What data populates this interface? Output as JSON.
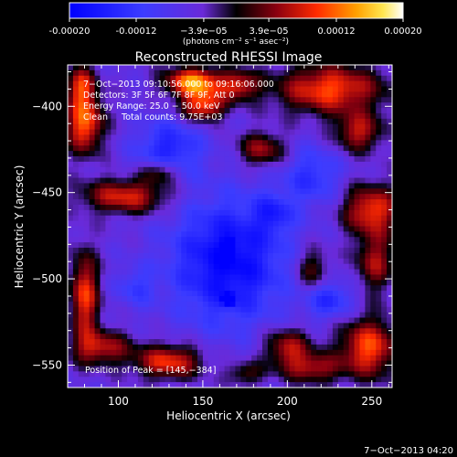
{
  "colorbar": {
    "tick_labels": [
      "-0.00020",
      "-0.00012",
      "−3.9e−05",
      "3.9e−05",
      "0.00012",
      "0.00020"
    ],
    "tick_values": [
      -0.0002,
      -0.00012,
      -3.9e-05,
      3.9e-05,
      0.00012,
      0.0002
    ],
    "range": [
      -0.0002,
      0.0002
    ],
    "unit_label": "(photons cm⁻² s⁻¹ asec⁻²)"
  },
  "chart_data": {
    "type": "heatmap",
    "title": "Reconstructed RHESSI Image",
    "xlabel": "Heliocentric X (arcsec)",
    "ylabel": "Heliocentric Y (arcsec)",
    "xlim": [
      70,
      262
    ],
    "ylim": [
      -563,
      -376
    ],
    "x_ticks": [
      100,
      150,
      200,
      250
    ],
    "y_ticks": [
      -550,
      -500,
      -450,
      -400
    ],
    "x_tick_labels": [
      "100",
      "150",
      "200",
      "250"
    ],
    "y_tick_labels": [
      "−550",
      "−500",
      "−450",
      "−400"
    ],
    "grid": false,
    "colormap": "blue-purple-black-red-yellow-white",
    "annotations": [
      "7−Oct−2013 09:10:56.000 to 09:16:06.000",
      "Detectors: 3F 5F 6F 7F 8F 9F, Att 0",
      "Energy Range: 25.0 − 50.0 keV",
      "Clean     Total counts: 9.75E+03"
    ],
    "peak_label": "Position of Peak = [145,−384]",
    "peak_position": [
      145,
      -384
    ],
    "regions": [
      {
        "x": 80,
        "y": -410,
        "sx": 8,
        "sy": 12,
        "v": 0.00017
      },
      {
        "x": 78,
        "y": -388,
        "sx": 6,
        "sy": 8,
        "v": 0.00013
      },
      {
        "x": 145,
        "y": -386,
        "sx": 12,
        "sy": 6,
        "v": 0.0002
      },
      {
        "x": 150,
        "y": -400,
        "sx": 9,
        "sy": 6,
        "v": 0.00016
      },
      {
        "x": 172,
        "y": -388,
        "sx": 8,
        "sy": 6,
        "v": 0.00012
      },
      {
        "x": 225,
        "y": -390,
        "sx": 22,
        "sy": 10,
        "v": 0.00016
      },
      {
        "x": 242,
        "y": -415,
        "sx": 10,
        "sy": 8,
        "v": 0.00012
      },
      {
        "x": 185,
        "y": -425,
        "sx": 10,
        "sy": 7,
        "v": 0.00011
      },
      {
        "x": 105,
        "y": -452,
        "sx": 18,
        "sy": 7,
        "v": 0.00014
      },
      {
        "x": 125,
        "y": -438,
        "sx": 8,
        "sy": 5,
        "v": 0.0001
      },
      {
        "x": 250,
        "y": -460,
        "sx": 12,
        "sy": 10,
        "v": 0.00015
      },
      {
        "x": 252,
        "y": -490,
        "sx": 8,
        "sy": 12,
        "v": 0.00011
      },
      {
        "x": 215,
        "y": -495,
        "sx": 7,
        "sy": 9,
        "v": 9e-05
      },
      {
        "x": 80,
        "y": -510,
        "sx": 6,
        "sy": 18,
        "v": 0.00015
      },
      {
        "x": 90,
        "y": -540,
        "sx": 12,
        "sy": 7,
        "v": 0.00012
      },
      {
        "x": 130,
        "y": -548,
        "sx": 14,
        "sy": 7,
        "v": 0.00015
      },
      {
        "x": 200,
        "y": -540,
        "sx": 10,
        "sy": 8,
        "v": 0.00012
      },
      {
        "x": 215,
        "y": -552,
        "sx": 12,
        "sy": 6,
        "v": 0.00011
      },
      {
        "x": 248,
        "y": -540,
        "sx": 12,
        "sy": 12,
        "v": 0.00016
      },
      {
        "x": 175,
        "y": -555,
        "sx": 8,
        "sy": 5,
        "v": 8e-05
      },
      {
        "x": 165,
        "y": -490,
        "sx": 24,
        "sy": 26,
        "v": -0.00014
      },
      {
        "x": 130,
        "y": -425,
        "sx": 14,
        "sy": 12,
        "v": -0.0001
      },
      {
        "x": 215,
        "y": -440,
        "sx": 12,
        "sy": 12,
        "v": -8e-05
      },
      {
        "x": 110,
        "y": -505,
        "sx": 8,
        "sy": 8,
        "v": -6e-05
      },
      {
        "x": 225,
        "y": -512,
        "sx": 10,
        "sy": 8,
        "v": -9e-05
      },
      {
        "x": 192,
        "y": -462,
        "sx": 8,
        "sy": 8,
        "v": -7e-05
      },
      {
        "x": 165,
        "y": -482,
        "sx": 2,
        "sy": 3,
        "v": -0.0003
      },
      {
        "x": 165,
        "y": -512,
        "sx": 2,
        "sy": 2,
        "v": -0.0003
      }
    ]
  },
  "footer": {
    "timestamp": "7−Oct−2013 04:20"
  }
}
